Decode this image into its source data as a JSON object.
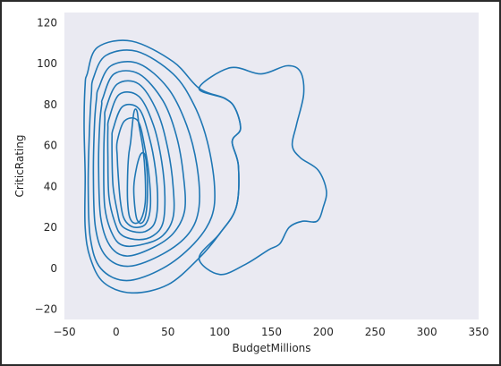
{
  "chart_data": {
    "type": "kde-contour",
    "title": "",
    "xlabel": "BudgetMillions",
    "ylabel": "CriticRating",
    "xlim": [
      -50,
      350
    ],
    "ylim": [
      -25,
      125
    ],
    "xticks": [
      -50,
      0,
      50,
      100,
      150,
      200,
      250,
      300,
      350
    ],
    "yticks": [
      -20,
      0,
      20,
      40,
      60,
      80,
      100,
      120
    ],
    "grid": false,
    "legend": "none",
    "line_color": "#1f77b4",
    "background": "#eaeaf2",
    "density_peak": {
      "x": 25,
      "y": 37
    },
    "contours": [
      [
        [
          -28,
          95
        ],
        [
          -18,
          108
        ],
        [
          15,
          111
        ],
        [
          55,
          101
        ],
        [
          80,
          88
        ],
        [
          105,
          83
        ],
        [
          115,
          78
        ],
        [
          120,
          68
        ],
        [
          112,
          62
        ],
        [
          118,
          50
        ],
        [
          116,
          30
        ],
        [
          100,
          17
        ],
        [
          80,
          5
        ],
        [
          50,
          -8
        ],
        [
          15,
          -12
        ],
        [
          -12,
          -7
        ],
        [
          -25,
          5
        ],
        [
          -30,
          20
        ],
        [
          -30,
          45
        ],
        [
          -31,
          70
        ],
        [
          -30,
          90
        ]
      ],
      [
        [
          -22,
          93
        ],
        [
          -10,
          104
        ],
        [
          20,
          106
        ],
        [
          55,
          95
        ],
        [
          75,
          80
        ],
        [
          88,
          62
        ],
        [
          95,
          40
        ],
        [
          92,
          25
        ],
        [
          75,
          12
        ],
        [
          45,
          0
        ],
        [
          10,
          -6
        ],
        [
          -15,
          0
        ],
        [
          -25,
          15
        ],
        [
          -27,
          40
        ],
        [
          -26,
          65
        ],
        [
          -24,
          85
        ]
      ],
      [
        [
          -17,
          88
        ],
        [
          -5,
          99
        ],
        [
          22,
          100
        ],
        [
          50,
          88
        ],
        [
          68,
          70
        ],
        [
          78,
          50
        ],
        [
          80,
          30
        ],
        [
          70,
          17
        ],
        [
          45,
          7
        ],
        [
          12,
          1
        ],
        [
          -10,
          6
        ],
        [
          -20,
          20
        ],
        [
          -22,
          45
        ],
        [
          -21,
          70
        ],
        [
          -19,
          83
        ]
      ],
      [
        [
          -13,
          83
        ],
        [
          -2,
          95
        ],
        [
          22,
          95
        ],
        [
          45,
          82
        ],
        [
          58,
          65
        ],
        [
          65,
          45
        ],
        [
          66,
          28
        ],
        [
          55,
          17
        ],
        [
          35,
          10
        ],
        [
          10,
          6
        ],
        [
          -6,
          11
        ],
        [
          -15,
          25
        ],
        [
          -17,
          50
        ],
        [
          -16,
          70
        ],
        [
          -14,
          80
        ]
      ],
      [
        [
          -10,
          78
        ],
        [
          1,
          90
        ],
        [
          22,
          90
        ],
        [
          40,
          76
        ],
        [
          50,
          58
        ],
        [
          55,
          40
        ],
        [
          55,
          25
        ],
        [
          45,
          16
        ],
        [
          28,
          12
        ],
        [
          8,
          11
        ],
        [
          -3,
          16
        ],
        [
          -11,
          30
        ],
        [
          -12,
          55
        ],
        [
          -11,
          72
        ]
      ],
      [
        [
          -7,
          73
        ],
        [
          3,
          85
        ],
        [
          22,
          84
        ],
        [
          36,
          70
        ],
        [
          44,
          52
        ],
        [
          47,
          35
        ],
        [
          45,
          22
        ],
        [
          36,
          16
        ],
        [
          22,
          14
        ],
        [
          6,
          16
        ],
        [
          -1,
          22
        ],
        [
          -7,
          35
        ],
        [
          -8,
          55
        ],
        [
          -8,
          68
        ]
      ],
      [
        [
          -3,
          68
        ],
        [
          6,
          79
        ],
        [
          22,
          78
        ],
        [
          32,
          64
        ],
        [
          38,
          48
        ],
        [
          40,
          32
        ],
        [
          37,
          22
        ],
        [
          28,
          18
        ],
        [
          16,
          18
        ],
        [
          5,
          21
        ],
        [
          1,
          28
        ],
        [
          -3,
          40
        ],
        [
          -4,
          55
        ],
        [
          -4,
          64
        ]
      ],
      [
        [
          1,
          62
        ],
        [
          8,
          72
        ],
        [
          21,
          72
        ],
        [
          28,
          58
        ],
        [
          32,
          44
        ],
        [
          33,
          30
        ],
        [
          29,
          22
        ],
        [
          21,
          20
        ],
        [
          13,
          21
        ],
        [
          7,
          25
        ],
        [
          4,
          33
        ],
        [
          2,
          45
        ],
        [
          1,
          55
        ]
      ],
      [
        [
          14,
          62
        ],
        [
          17,
          76
        ],
        [
          20,
          77
        ],
        [
          22,
          70
        ],
        [
          26,
          58
        ],
        [
          28,
          45
        ],
        [
          28,
          32
        ],
        [
          24,
          24
        ],
        [
          18,
          22
        ],
        [
          13,
          25
        ],
        [
          11,
          33
        ],
        [
          11,
          45
        ],
        [
          12,
          55
        ]
      ],
      [
        [
          17,
          40
        ],
        [
          20,
          50
        ],
        [
          24,
          56
        ],
        [
          28,
          55
        ],
        [
          30,
          45
        ],
        [
          30,
          33
        ],
        [
          28,
          25
        ],
        [
          24,
          22
        ],
        [
          20,
          24
        ],
        [
          18,
          30
        ]
      ],
      [
        [
          80,
          88
        ],
        [
          110,
          98
        ],
        [
          140,
          95
        ],
        [
          165,
          99
        ],
        [
          178,
          96
        ],
        [
          181,
          85
        ],
        [
          174,
          70
        ],
        [
          170,
          60
        ],
        [
          178,
          54
        ],
        [
          195,
          48
        ],
        [
          203,
          38
        ],
        [
          200,
          30
        ],
        [
          194,
          23
        ],
        [
          180,
          23
        ],
        [
          167,
          20
        ],
        [
          158,
          12
        ],
        [
          147,
          9
        ],
        [
          125,
          2
        ],
        [
          100,
          -3
        ],
        [
          80,
          5
        ],
        [
          100,
          17
        ],
        [
          116,
          30
        ],
        [
          118,
          50
        ],
        [
          112,
          62
        ],
        [
          120,
          68
        ],
        [
          115,
          78
        ],
        [
          105,
          83
        ]
      ]
    ]
  }
}
